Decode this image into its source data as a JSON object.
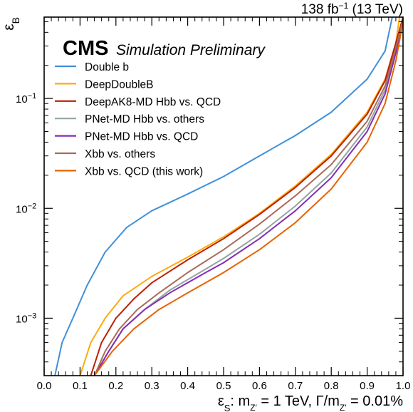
{
  "header": {
    "lumi": "138 fb",
    "lumi_exp": "−1",
    "energy": "(13 TeV)",
    "experiment": "CMS",
    "status": "Simulation Preliminary"
  },
  "colors": {
    "Double b": "#3f90da",
    "DeepDoubleB": "#ffa90e",
    "DeepAK8-MD Hbb vs. QCD": "#bd1f01",
    "PNet-MD Hbb vs. others": "#94a4a2",
    "PNet-MD Hbb vs. QCD": "#832db6",
    "Xbb vs. others": "#a96b59",
    "Xbb vs. QCD (this work)": "#e76300"
  },
  "chart_data": {
    "type": "line",
    "xlabel": "εS: mZ′ = 1 TeV,  Γ/mZ′ = 0.01%",
    "ylabel": "εB",
    "xlim": [
      0.0,
      1.0
    ],
    "ylim": [
      0.0003,
      0.55
    ],
    "yscale": "log",
    "grid": false,
    "legend_position": "top-left",
    "x_ticks": [
      "0.0",
      "0.1",
      "0.2",
      "0.3",
      "0.4",
      "0.5",
      "0.6",
      "0.7",
      "0.8",
      "0.9",
      "1.0"
    ],
    "y_ticks": [
      {
        "value": 0.001,
        "base": "10",
        "exp": "−3"
      },
      {
        "value": 0.01,
        "base": "10",
        "exp": "−2"
      },
      {
        "value": 0.1,
        "base": "10",
        "exp": "−1"
      }
    ],
    "series": [
      {
        "name": "Double b",
        "x": [
          0.03,
          0.05,
          0.08,
          0.12,
          0.17,
          0.23,
          0.3,
          0.4,
          0.5,
          0.6,
          0.7,
          0.8,
          0.9,
          0.95,
          0.97
        ],
        "y": [
          0.0003,
          0.0006,
          0.001,
          0.002,
          0.004,
          0.0067,
          0.0095,
          0.0135,
          0.0195,
          0.03,
          0.046,
          0.075,
          0.15,
          0.27,
          0.55
        ]
      },
      {
        "name": "DeepDoubleB",
        "x": [
          0.1,
          0.13,
          0.17,
          0.22,
          0.3,
          0.4,
          0.5,
          0.6,
          0.7,
          0.8,
          0.9,
          0.95,
          0.98,
          0.99
        ],
        "y": [
          0.0003,
          0.0006,
          0.001,
          0.0016,
          0.0024,
          0.0036,
          0.0055,
          0.009,
          0.016,
          0.031,
          0.075,
          0.15,
          0.32,
          0.55
        ]
      },
      {
        "name": "DeepAK8-MD Hbb vs. QCD",
        "x": [
          0.13,
          0.16,
          0.2,
          0.25,
          0.3,
          0.4,
          0.5,
          0.6,
          0.7,
          0.8,
          0.9,
          0.95,
          0.98,
          1.0
        ],
        "y": [
          0.0003,
          0.0006,
          0.001,
          0.0015,
          0.0021,
          0.0034,
          0.0053,
          0.0088,
          0.0155,
          0.03,
          0.072,
          0.145,
          0.32,
          0.55
        ]
      },
      {
        "name": "PNet-MD Hbb vs. others",
        "x": [
          0.14,
          0.18,
          0.22,
          0.28,
          0.35,
          0.45,
          0.5,
          0.6,
          0.7,
          0.8,
          0.9,
          0.95,
          0.98,
          1.0
        ],
        "y": [
          0.0003,
          0.0005,
          0.0008,
          0.0012,
          0.0018,
          0.0028,
          0.0035,
          0.0058,
          0.0105,
          0.021,
          0.055,
          0.12,
          0.27,
          0.5
        ]
      },
      {
        "name": "PNet-MD Hbb vs. QCD",
        "x": [
          0.14,
          0.18,
          0.22,
          0.28,
          0.35,
          0.45,
          0.5,
          0.6,
          0.7,
          0.8,
          0.9,
          0.95,
          0.98,
          1.0
        ],
        "y": [
          0.0003,
          0.0005,
          0.0008,
          0.0012,
          0.0017,
          0.0026,
          0.0032,
          0.0053,
          0.0095,
          0.019,
          0.05,
          0.11,
          0.26,
          0.5
        ]
      },
      {
        "name": "Xbb vs. others",
        "x": [
          0.14,
          0.17,
          0.21,
          0.26,
          0.32,
          0.4,
          0.5,
          0.6,
          0.7,
          0.8,
          0.9,
          0.95,
          0.98,
          1.0
        ],
        "y": [
          0.0003,
          0.0005,
          0.0008,
          0.0012,
          0.0017,
          0.0026,
          0.0042,
          0.0072,
          0.013,
          0.025,
          0.062,
          0.13,
          0.29,
          0.52
        ]
      },
      {
        "name": "Xbb vs. QCD (this work)",
        "x": [
          0.14,
          0.19,
          0.25,
          0.32,
          0.4,
          0.5,
          0.6,
          0.7,
          0.8,
          0.9,
          0.95,
          0.98,
          1.0
        ],
        "y": [
          0.0003,
          0.0005,
          0.0008,
          0.0012,
          0.0017,
          0.0026,
          0.0042,
          0.0074,
          0.015,
          0.04,
          0.09,
          0.22,
          0.5
        ]
      }
    ]
  }
}
